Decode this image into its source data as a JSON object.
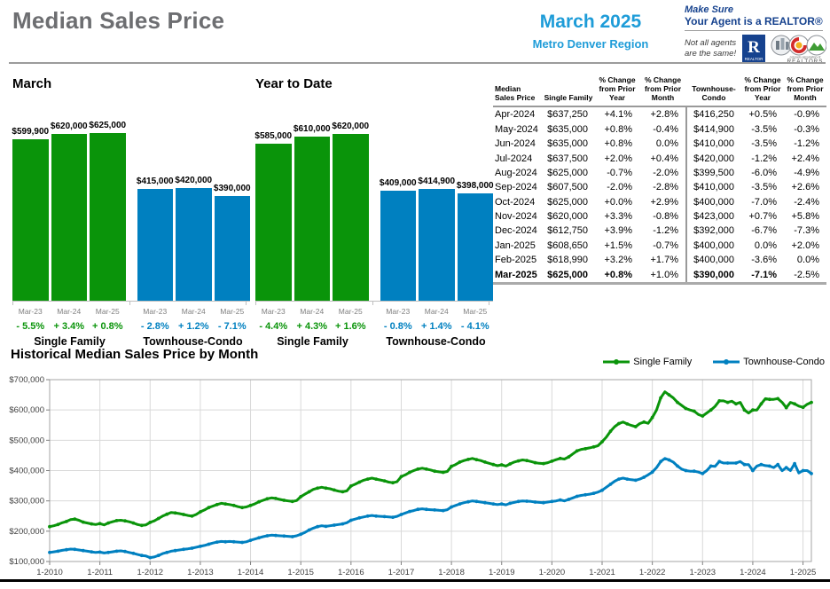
{
  "header": {
    "title": "Median Sales Price",
    "period_month": "March 2025",
    "period_region": "Metro Denver Region",
    "brand_tag1": "Make Sure",
    "brand_tag2": "Your Agent is a REALTOR®",
    "brand_note": "Not all agents are the same!",
    "realtor_logo_letter": "R",
    "car_logo_text": "REALTORS®"
  },
  "colors": {
    "green": "#0a940a",
    "blue": "#0080c0",
    "accent_blue": "#1e9cd8",
    "navy": "#16428e",
    "grid": "#d9d9d9",
    "axis": "#a6a6a6"
  },
  "hist_title": "Historical Median Sales Price by Month",
  "chart_data": [
    {
      "type": "bar",
      "title": "March",
      "ylim": [
        0,
        700000
      ],
      "groups": [
        {
          "label": "Single Family",
          "color": "#0a940a",
          "bars": [
            {
              "x": "Mar-23",
              "value": 599900,
              "label": "$599,900",
              "pct": "- 5.5%"
            },
            {
              "x": "Mar-24",
              "value": 620000,
              "label": "$620,000",
              "pct": "+ 3.4%"
            },
            {
              "x": "Mar-25",
              "value": 625000,
              "label": "$625,000",
              "pct": "+ 0.8%"
            }
          ]
        },
        {
          "label": "Townhouse-Condo",
          "color": "#0080c0",
          "bars": [
            {
              "x": "Mar-23",
              "value": 415000,
              "label": "$415,000",
              "pct": "- 2.8%"
            },
            {
              "x": "Mar-24",
              "value": 420000,
              "label": "$420,000",
              "pct": "+ 1.2%"
            },
            {
              "x": "Mar-25",
              "value": 390000,
              "label": "$390,000",
              "pct": "- 7.1%"
            }
          ]
        }
      ]
    },
    {
      "type": "bar",
      "title": "Year to Date",
      "ylim": [
        0,
        700000
      ],
      "groups": [
        {
          "label": "Single Family",
          "color": "#0a940a",
          "bars": [
            {
              "x": "Mar-23",
              "value": 585000,
              "label": "$585,000",
              "pct": "- 4.4%"
            },
            {
              "x": "Mar-24",
              "value": 610000,
              "label": "$610,000",
              "pct": "+ 4.3%"
            },
            {
              "x": "Mar-25",
              "value": 620000,
              "label": "$620,000",
              "pct": "+ 1.6%"
            }
          ]
        },
        {
          "label": "Townhouse-Condo",
          "color": "#0080c0",
          "bars": [
            {
              "x": "Mar-23",
              "value": 409000,
              "label": "$409,000",
              "pct": "- 0.8%"
            },
            {
              "x": "Mar-24",
              "value": 414900,
              "label": "$414,900",
              "pct": "+ 1.4%"
            },
            {
              "x": "Mar-25",
              "value": 398000,
              "label": "$398,000",
              "pct": "- 4.1%"
            }
          ]
        }
      ]
    },
    {
      "type": "line",
      "title": "Historical Median Sales Price by Month",
      "unit": "USD thousands",
      "x_start": "1-2010",
      "x_end": "3-2025",
      "x_tick_labels": [
        "1-2010",
        "1-2011",
        "1-2012",
        "1-2013",
        "1-2014",
        "1-2015",
        "1-2016",
        "1-2017",
        "1-2018",
        "1-2019",
        "1-2020",
        "1-2021",
        "1-2022",
        "1-2023",
        "1-2024",
        "1-2025"
      ],
      "ylim": [
        100000,
        700000
      ],
      "y_tick_labels": [
        "$100,000",
        "$200,000",
        "$300,000",
        "$400,000",
        "$500,000",
        "$600,000",
        "$700,000"
      ],
      "grid": true,
      "legend_position": "top-right",
      "series": [
        {
          "name": "Single Family",
          "color": "#0a940a",
          "values": [
            215,
            218,
            222,
            228,
            232,
            238,
            240,
            236,
            230,
            227,
            224,
            222,
            225,
            221,
            227,
            231,
            235,
            236,
            234,
            231,
            227,
            222,
            219,
            221,
            229,
            234,
            242,
            250,
            256,
            262,
            260,
            258,
            255,
            252,
            250,
            255,
            264,
            270,
            278,
            283,
            288,
            292,
            290,
            288,
            285,
            281,
            278,
            280,
            285,
            290,
            297,
            302,
            307,
            310,
            308,
            305,
            302,
            300,
            298,
            301,
            314,
            322,
            330,
            338,
            342,
            345,
            342,
            340,
            336,
            332,
            330,
            333,
            349,
            355,
            362,
            368,
            372,
            375,
            372,
            369,
            366,
            362,
            360,
            363,
            380,
            386,
            394,
            400,
            405,
            408,
            405,
            402,
            398,
            396,
            394,
            397,
            414,
            420,
            428,
            433,
            437,
            440,
            436,
            433,
            428,
            424,
            420,
            416,
            419,
            415,
            422,
            428,
            432,
            435,
            433,
            430,
            426,
            424,
            423,
            426,
            431,
            436,
            440,
            438,
            445,
            455,
            465,
            470,
            472,
            475,
            478,
            482,
            495,
            510,
            530,
            545,
            555,
            560,
            554,
            549,
            545,
            555,
            560,
            556,
            575,
            600,
            640,
            660,
            650,
            640,
            625,
            615,
            605,
            600,
            596,
            585,
            580,
            590,
            599.9,
            612,
            630,
            630,
            625,
            629,
            620,
            625,
            600,
            590,
            600,
            600,
            620,
            637.25,
            635,
            635,
            637.5,
            625,
            607.5,
            625,
            620,
            612.75,
            608.65,
            618.99,
            625
          ]
        },
        {
          "name": "Townhouse-Condo",
          "color": "#0080c0",
          "values": [
            130,
            132,
            134,
            137,
            139,
            141,
            140,
            138,
            136,
            134,
            132,
            130,
            131,
            128,
            130,
            132,
            134,
            135,
            133,
            130,
            127,
            123,
            120,
            118,
            113,
            115,
            120,
            126,
            130,
            134,
            136,
            138,
            140,
            142,
            144,
            147,
            150,
            153,
            157,
            161,
            164,
            166,
            165,
            166,
            165,
            164,
            163,
            165,
            170,
            174,
            178,
            182,
            185,
            187,
            186,
            185,
            184,
            183,
            182,
            185,
            190,
            196,
            204,
            210,
            215,
            218,
            216,
            218,
            220,
            222,
            224,
            228,
            236,
            240,
            244,
            247,
            250,
            252,
            250,
            249,
            248,
            247,
            246,
            249,
            255,
            260,
            265,
            268,
            272,
            274,
            272,
            271,
            270,
            269,
            268,
            271,
            280,
            285,
            290,
            294,
            297,
            300,
            298,
            296,
            294,
            292,
            290,
            288,
            290,
            287,
            292,
            295,
            298,
            300,
            299,
            298,
            296,
            295,
            294,
            296,
            298,
            300,
            303,
            300,
            305,
            310,
            315,
            318,
            320,
            322,
            325,
            329,
            335,
            345,
            355,
            365,
            372,
            375,
            372,
            370,
            368,
            372,
            378,
            386,
            395,
            410,
            430,
            440,
            435,
            428,
            415,
            405,
            400,
            398,
            398,
            395,
            390,
            400,
            415,
            414,
            430,
            425,
            425,
            425,
            425,
            430,
            420,
            420,
            400,
            415,
            420,
            416.25,
            414.9,
            410,
            420,
            399.5,
            410,
            400,
            423,
            392,
            400,
            400,
            390
          ]
        }
      ]
    }
  ],
  "table": {
    "columns": [
      "Median Sales Price",
      "Single Family",
      "% Change from Prior Year",
      "% Change from Prior Month",
      "Townhouse-Condo",
      "% Change from Prior Year",
      "% Change from Prior Month"
    ],
    "rows": [
      {
        "cells": [
          "Apr-2024",
          "$637,250",
          "+4.1%",
          "+2.8%",
          "$416,250",
          "+0.5%",
          "-0.9%"
        ],
        "bold": false
      },
      {
        "cells": [
          "May-2024",
          "$635,000",
          "+0.8%",
          "-0.4%",
          "$414,900",
          "-3.5%",
          "-0.3%"
        ],
        "bold": false
      },
      {
        "cells": [
          "Jun-2024",
          "$635,000",
          "+0.8%",
          "0.0%",
          "$410,000",
          "-3.5%",
          "-1.2%"
        ],
        "bold": false
      },
      {
        "cells": [
          "Jul-2024",
          "$637,500",
          "+2.0%",
          "+0.4%",
          "$420,000",
          "-1.2%",
          "+2.4%"
        ],
        "bold": false
      },
      {
        "cells": [
          "Aug-2024",
          "$625,000",
          "-0.7%",
          "-2.0%",
          "$399,500",
          "-6.0%",
          "-4.9%"
        ],
        "bold": false
      },
      {
        "cells": [
          "Sep-2024",
          "$607,500",
          "-2.0%",
          "-2.8%",
          "$410,000",
          "-3.5%",
          "+2.6%"
        ],
        "bold": false
      },
      {
        "cells": [
          "Oct-2024",
          "$625,000",
          "+0.0%",
          "+2.9%",
          "$400,000",
          "-7.0%",
          "-2.4%"
        ],
        "bold": false
      },
      {
        "cells": [
          "Nov-2024",
          "$620,000",
          "+3.3%",
          "-0.8%",
          "$423,000",
          "+0.7%",
          "+5.8%"
        ],
        "bold": false
      },
      {
        "cells": [
          "Dec-2024",
          "$612,750",
          "+3.9%",
          "-1.2%",
          "$392,000",
          "-6.7%",
          "-7.3%"
        ],
        "bold": false
      },
      {
        "cells": [
          "Jan-2025",
          "$608,650",
          "+1.5%",
          "-0.7%",
          "$400,000",
          "0.0%",
          "+2.0%"
        ],
        "bold": false
      },
      {
        "cells": [
          "Feb-2025",
          "$618,990",
          "+3.2%",
          "+1.7%",
          "$400,000",
          "-3.6%",
          "0.0%"
        ],
        "bold": false
      },
      {
        "cells": [
          "Mar-2025",
          "$625,000",
          "+0.8%",
          "+1.0%",
          "$390,000",
          "-7.1%",
          "-2.5%"
        ],
        "bold": true,
        "bold_mask": [
          true,
          true,
          true,
          false,
          true,
          true,
          false
        ]
      }
    ]
  }
}
